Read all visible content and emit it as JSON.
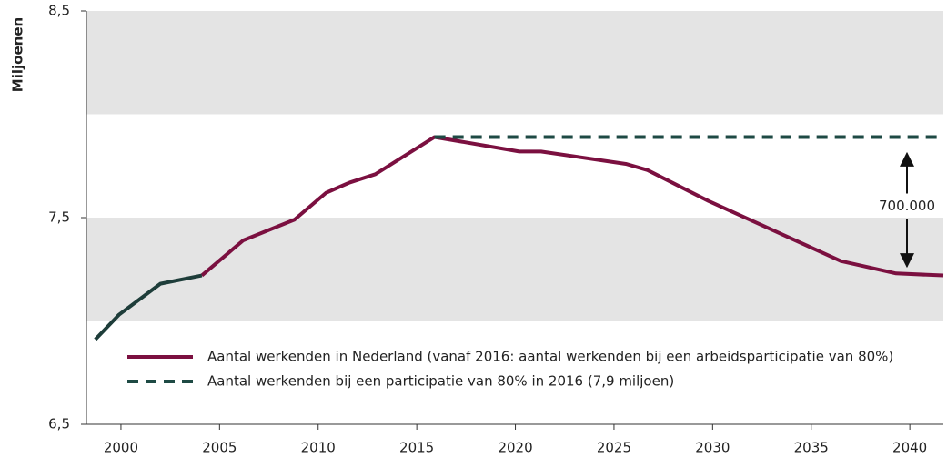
{
  "chart_data": {
    "type": "line",
    "y_label": "Miljoenen",
    "x": [
      1998.7,
      1999.9,
      2002.0,
      2004.1,
      2006.2,
      2008.8,
      2010.4,
      2011.6,
      2012.9,
      2015.9,
      2020.2,
      2021.3,
      2025.6,
      2026.7,
      2029.8,
      2033.5,
      2036.5,
      2039.3,
      2041.7
    ],
    "series": [
      {
        "name": "Aantal werkenden in Nederland (vanaf 2016: aantal werkenden bij een arbeidsparticipatie van 80%)",
        "color": "#7b1040",
        "style": "solid",
        "values": [
          null,
          null,
          null,
          7.22,
          7.39,
          7.49,
          7.62,
          7.67,
          7.71,
          7.89,
          7.82,
          7.82,
          7.76,
          7.73,
          7.58,
          7.42,
          7.29,
          7.23,
          7.22
        ]
      },
      {
        "color": "#1e3d3a",
        "style": "solid",
        "values": [
          6.91,
          7.03,
          7.18,
          7.22,
          null,
          null,
          null,
          null,
          null,
          null,
          null,
          null,
          null,
          null,
          null,
          null,
          null,
          null,
          null
        ]
      },
      {
        "name": "Aantal werkenden bij een participatie van 80% in 2016 (7,9 miljoen)",
        "color": "#1e4a44",
        "style": "dashed",
        "values": [
          null,
          null,
          null,
          null,
          null,
          null,
          null,
          null,
          null,
          7.89,
          7.89,
          7.89,
          7.89,
          7.89,
          7.89,
          7.89,
          7.89,
          7.89,
          7.89
        ]
      }
    ],
    "annotation": "700.000",
    "xlim": [
      1998.25,
      2041.7
    ],
    "xticks": [
      2000,
      2005,
      2010,
      2015,
      2020,
      2025,
      2030,
      2035,
      2040
    ],
    "ylim": [
      6.5,
      8.5
    ],
    "yticks": [
      {
        "value": 6.5,
        "label": "6,5"
      },
      {
        "value": 7.5,
        "label": "7,5"
      },
      {
        "value": 8.5,
        "label": "8,5"
      }
    ],
    "bands": true
  }
}
